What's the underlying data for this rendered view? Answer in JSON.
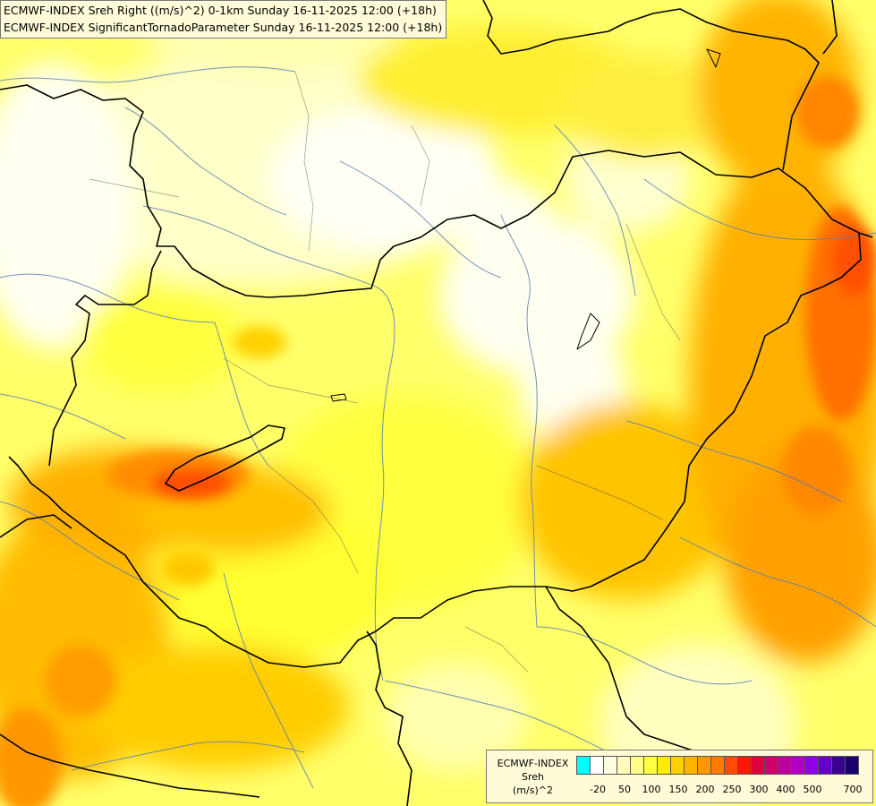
{
  "title": {
    "line1": "ECMWF-INDEX Sreh Right ((m/s)^2) 0-1km Sunday 16-11-2025 12:00 (+18h)",
    "line2": "ECMWF-INDEX SignificantTornadoParameter Sunday 16-11-2025 12:00 (+18h)"
  },
  "legend": {
    "line1": "ECMWF-INDEX",
    "line2": "Sreh",
    "line3": "(m/s)^2",
    "colors": [
      "#00ffff",
      "#ffffff",
      "#fffde0",
      "#fffbb8",
      "#ffff88",
      "#ffff40",
      "#ffec00",
      "#ffd000",
      "#ffb400",
      "#ff9800",
      "#ff7c00",
      "#ff4c00",
      "#ff1800",
      "#e0003c",
      "#d0006c",
      "#c0009c",
      "#b000c8",
      "#9000e8",
      "#6600cc",
      "#3a0090",
      "#1a006a"
    ],
    "ticks": [
      "-20",
      "50",
      "100",
      "150",
      "200",
      "250",
      "300",
      "400",
      "500",
      "700"
    ]
  }
}
